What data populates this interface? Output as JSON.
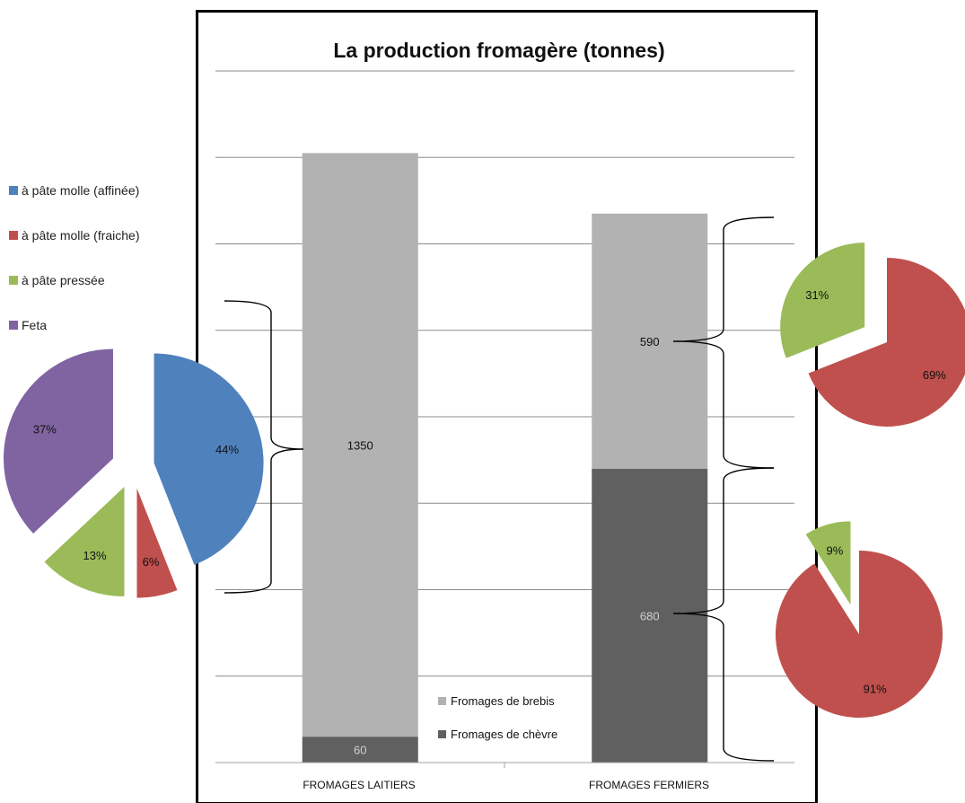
{
  "chart_data": [
    {
      "type": "bar",
      "stacked": true,
      "title": "La production fromagère (tonnes)",
      "categories": [
        "FROMAGES LAITIERS",
        "FROMAGES FERMIERS"
      ],
      "series": [
        {
          "name": "Fromages de chèvre",
          "values": [
            60,
            680
          ],
          "color": "#606060",
          "label_color": "#d0d0d0"
        },
        {
          "name": "Fromages de brebis",
          "values": [
            1350,
            590
          ],
          "color": "#b2b2b2",
          "label_color": "#111111"
        }
      ],
      "ylim": [
        0,
        1600
      ],
      "grid": true,
      "legend_position": "bottom-right inside",
      "xlabel": "",
      "ylabel": ""
    },
    {
      "type": "pie",
      "exploded": true,
      "linked_to": "FROMAGES LAITIERS / Fromages de brebis (1350)",
      "slices": [
        {
          "label": "à pâte molle (affinée)",
          "value": 44,
          "display": "44%",
          "color": "#4f81bd"
        },
        {
          "label": "à pâte molle (fraiche)",
          "value": 6,
          "display": "6%",
          "color": "#c0504d"
        },
        {
          "label": "à pâte pressée",
          "value": 13,
          "display": "13%",
          "color": "#9bbb59"
        },
        {
          "label": "Feta",
          "value": 37,
          "display": "37%",
          "color": "#8064a2"
        }
      ]
    },
    {
      "type": "pie",
      "exploded": true,
      "linked_to": "FROMAGES FERMIERS / Fromages de brebis (590)",
      "slices": [
        {
          "label": "à pâte molle (fraiche)",
          "value": 69,
          "display": "69%",
          "color": "#c0504d"
        },
        {
          "label": "à pâte pressée",
          "value": 31,
          "display": "31%",
          "color": "#9bbb59"
        }
      ]
    },
    {
      "type": "pie",
      "exploded": true,
      "linked_to": "FROMAGES FERMIERS / Fromages de chèvre (680)",
      "slices": [
        {
          "label": "à pâte molle (fraiche)",
          "value": 91,
          "display": "91%",
          "color": "#c0504d"
        },
        {
          "label": "à pâte pressée",
          "value": 9,
          "display": "9%",
          "color": "#9bbb59"
        }
      ]
    }
  ],
  "pie_legend": [
    {
      "label": "à pâte molle (affinée)",
      "color": "#4f81bd"
    },
    {
      "label": "à pâte molle (fraiche)",
      "color": "#c0504d"
    },
    {
      "label": "à pâte pressée",
      "color": "#9bbb59"
    },
    {
      "label": "Feta",
      "color": "#8064a2"
    }
  ]
}
